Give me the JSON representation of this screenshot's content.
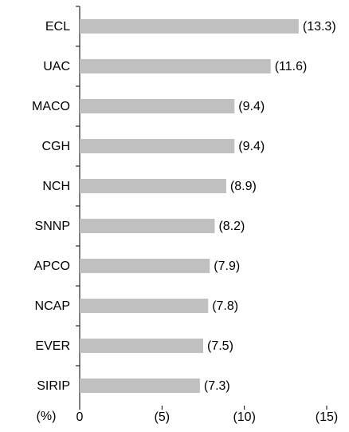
{
  "chart_data": {
    "type": "bar",
    "orientation": "horizontal",
    "categories": [
      "ECL",
      "UAC",
      "MACO",
      "CGH",
      "NCH",
      "SNNP",
      "APCO",
      "NCAP",
      "EVER",
      "SIRIP"
    ],
    "values": [
      -13.3,
      -11.6,
      -9.4,
      -9.4,
      -8.9,
      -8.2,
      -7.9,
      -7.8,
      -7.5,
      -7.3
    ],
    "value_labels": [
      "(13.3)",
      "(11.6)",
      "(9.4)",
      "(9.4)",
      "(8.9)",
      "(8.2)",
      "(7.9)",
      "(7.8)",
      "(7.5)",
      "(7.3)"
    ],
    "color": "#c0c0c0",
    "x_label": "(%)",
    "xlim": [
      0,
      -15
    ],
    "xticks": [
      0,
      {
        "value": -5,
        "label": "(5)"
      },
      {
        "value": -10,
        "label": "(10)"
      },
      {
        "value": -15,
        "label": "(15)"
      }
    ],
    "grid": false
  }
}
